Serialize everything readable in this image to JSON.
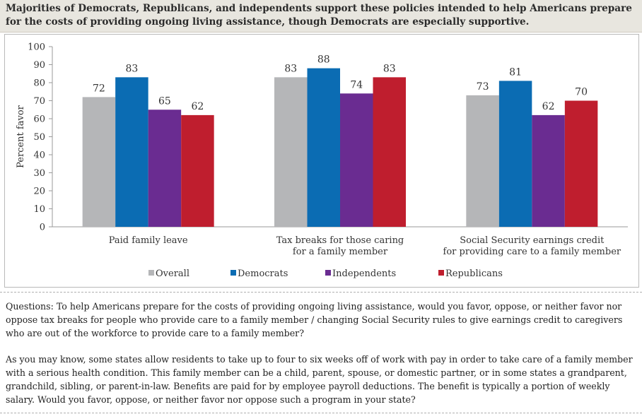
{
  "header": {
    "title": "Majorities of Democrats, Republicans, and independents support these policies intended to help Americans prepare for the costs of providing ongoing living assistance, though Democrats are especially supportive."
  },
  "chart_data": {
    "type": "bar",
    "ylabel": "Percent favor",
    "ylim": [
      0,
      100
    ],
    "yticks": [
      0,
      10,
      20,
      30,
      40,
      50,
      60,
      70,
      80,
      90,
      100
    ],
    "grid": false,
    "legend_position": "bottom",
    "categories": [
      [
        "Paid family leave"
      ],
      [
        "Tax breaks for those caring",
        "for a family member"
      ],
      [
        "Social Security earnings credit",
        "for providing care to a family member"
      ]
    ],
    "series": [
      {
        "name": "Overall",
        "color": "#b5b6b8",
        "values": [
          72,
          83,
          73
        ]
      },
      {
        "name": "Democrats",
        "color": "#0b6cb3",
        "values": [
          83,
          88,
          81
        ]
      },
      {
        "name": "Independents",
        "color": "#6a2c91",
        "values": [
          65,
          74,
          62
        ]
      },
      {
        "name": "Republicans",
        "color": "#bf1e2e",
        "values": [
          62,
          83,
          70
        ]
      }
    ]
  },
  "notes": {
    "paragraph1": "Questions: To help Americans prepare for the costs of providing ongoing living assistance, would you favor, oppose, or neither favor nor oppose tax breaks for people who provide care to a family member / changing Social Security rules to give earnings credit to caregivers who are out of the workforce to provide care to a family member?",
    "paragraph2": "As you may know, some states allow residents to take up to four to six weeks off of work with pay in order to take care of a family member with a serious health condition. This family member can be a child, parent, spouse, or domestic partner, or in some states a grandparent, grandchild, sibling, or parent-in-law. Benefits are paid for by employee payroll deductions. The benefit is typically a portion of weekly salary. Would you favor, oppose, or neither favor nor oppose such a program in your state?"
  }
}
